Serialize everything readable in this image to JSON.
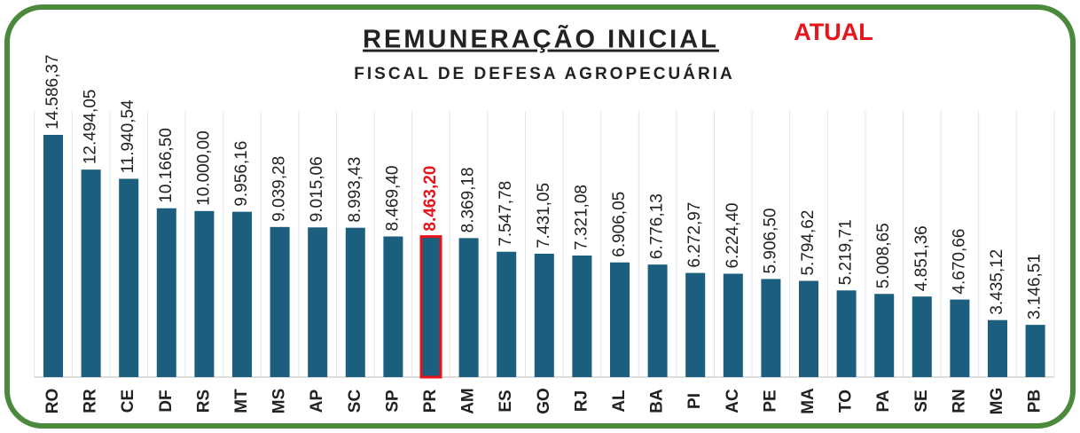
{
  "chart_data": {
    "type": "bar",
    "title": "REMUNERAÇÃO INICIAL",
    "annotation": "ATUAL",
    "subtitle": "FISCAL DE DEFESA AGROPECUÁRIA",
    "categories": [
      "RO",
      "RR",
      "CE",
      "DF",
      "RS",
      "MT",
      "MS",
      "AP",
      "SC",
      "SP",
      "PR",
      "AM",
      "ES",
      "GO",
      "RJ",
      "AL",
      "BA",
      "PI",
      "AC",
      "PE",
      "MA",
      "TO",
      "PA",
      "SE",
      "RN",
      "MG",
      "PB"
    ],
    "values": [
      14586.37,
      12494.05,
      11940.54,
      10166.5,
      10000.0,
      9956.16,
      9039.28,
      9015.06,
      8993.43,
      8469.4,
      8463.2,
      8369.18,
      7547.78,
      7431.05,
      7321.08,
      6906.05,
      6776.13,
      6272.97,
      6224.4,
      5906.5,
      5794.62,
      5219.71,
      5008.65,
      4851.36,
      4670.66,
      3435.12,
      3146.51
    ],
    "value_labels": [
      "14.586,37",
      "12.494,05",
      "11.940,54",
      "10.166,50",
      "10.000,00",
      "9.956,16",
      "9.039,28",
      "9.015,06",
      "8.993,43",
      "8.469,40",
      "8.463,20",
      "8.369,18",
      "7.547,78",
      "7.431,05",
      "7.321,08",
      "6.906,05",
      "6.776,13",
      "6.272,97",
      "6.224,40",
      "5.906,50",
      "5.794,62",
      "5.219,71",
      "5.008,65",
      "4.851,36",
      "4.670,66",
      "3.435,12",
      "3.146,51"
    ],
    "color": "#1b5e7e",
    "highlight": "PR",
    "highlight_color": "#e8141c"
  }
}
